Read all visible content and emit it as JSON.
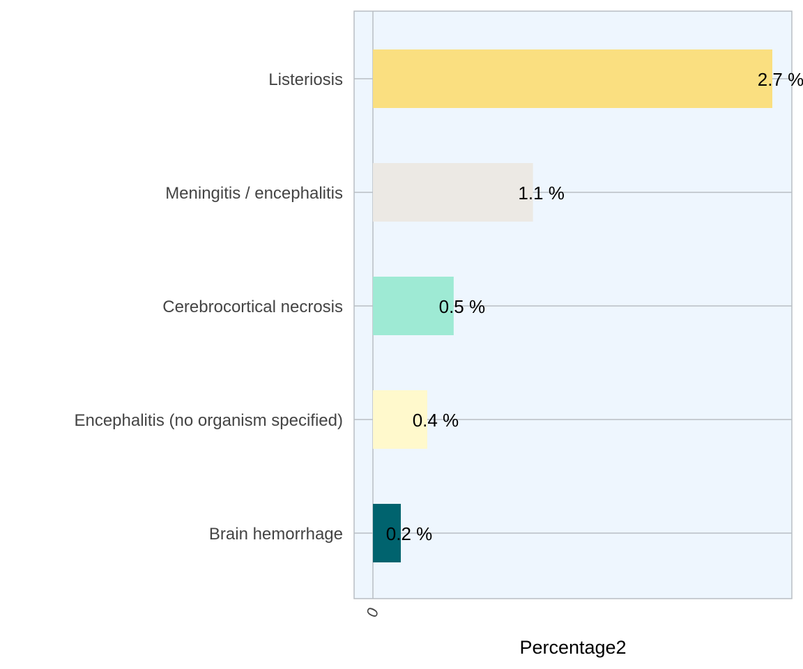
{
  "chart_data": {
    "type": "bar",
    "orientation": "horizontal",
    "categories": [
      "Listeriosis",
      "Meningitis / encephalitis",
      "Cerebrocortical necrosis",
      "Encephalitis (no organism specified)",
      "Brain hemorrhage"
    ],
    "values": [
      2.7,
      1.1,
      0.5,
      0.4,
      0.2
    ],
    "bar_values": [
      2.72,
      1.09,
      0.55,
      0.37,
      0.19
    ],
    "value_labels": [
      "2.7 %",
      "1.1 %",
      "0.5 %",
      "0.4 %",
      "0.2 %"
    ],
    "colors": [
      "#FADF80",
      "#ECE9E4",
      "#9EEAD4",
      "#FFF9CC",
      "#00636E"
    ],
    "xlabel": "Percentage2",
    "ylabel": "",
    "x_ticks": [
      "0"
    ],
    "xlim": [
      -0.13,
      2.85
    ],
    "grid": "horizontal lines at categories, vertical line at zero",
    "background": "#EEF6FE"
  }
}
